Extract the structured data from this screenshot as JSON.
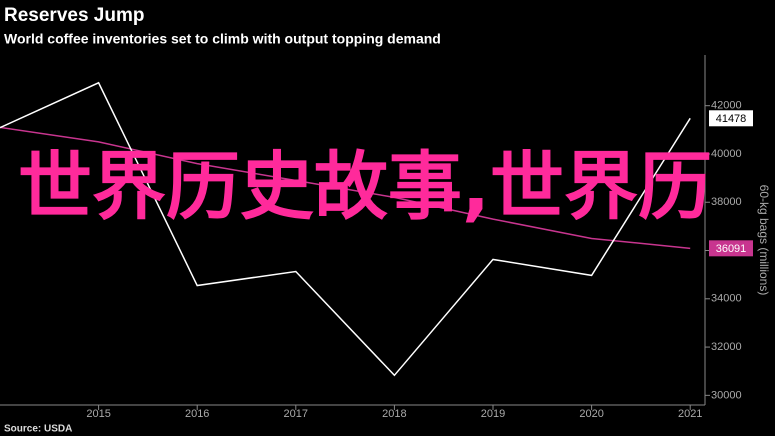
{
  "chart_data": {
    "type": "line",
    "title": "Reserves Jump",
    "subtitle": "World coffee inventories set to climb with output topping demand",
    "y_axis_label": "60-kg bags (millions)",
    "source": "Source: USDA",
    "overlay_text": "世界历史故事,世界历",
    "x": [
      2014,
      2015,
      2016,
      2017,
      2018,
      2019,
      2020,
      2021
    ],
    "xlim": [
      2014,
      2021.15
    ],
    "xticks": [
      2015,
      2016,
      2017,
      2018,
      2019,
      2020,
      2021
    ],
    "ylim": [
      29600,
      44100
    ],
    "yticks": [
      30000,
      32000,
      34000,
      36000,
      38000,
      40000,
      42000
    ],
    "series": [
      {
        "color": "#ffffff",
        "values": [
          41090,
          42950,
          34550,
          35130,
          30830,
          35630,
          34970,
          41478
        ]
      },
      {
        "color": "#c8358f",
        "values": [
          41100,
          40500,
          39600,
          38900,
          38200,
          37300,
          36500,
          36091
        ]
      }
    ]
  }
}
